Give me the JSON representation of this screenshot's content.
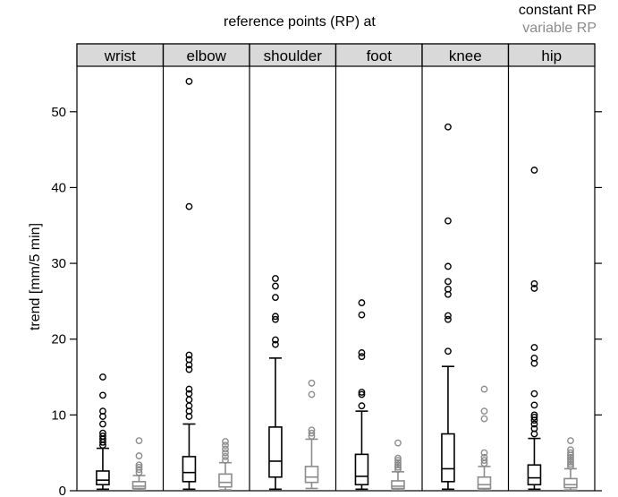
{
  "title": "reference points (RP) at",
  "legend": [
    {
      "label": "constant RP",
      "color": "#000000"
    },
    {
      "label": "variable RP",
      "color": "#8c8c8c"
    }
  ],
  "colors": {
    "constant": "#000000",
    "variable": "#8c8c8c",
    "strip": "#d9d9d9"
  },
  "chart_data": {
    "type": "box",
    "title": "reference points (RP) at",
    "ylabel": "trend [mm/5 min]",
    "xlabel": "",
    "ylim": [
      0,
      56
    ],
    "yticks": [
      0,
      10,
      20,
      30,
      40,
      50
    ],
    "panels": [
      {
        "name": "wrist",
        "constant": {
          "min": 0.2,
          "q1": 0.8,
          "median": 1.4,
          "q3": 2.6,
          "max": 5.6,
          "outliers": [
            6.0,
            6.4,
            6.8,
            7.2,
            7.6,
            8.8,
            9.8,
            10.5,
            12.6,
            15.0
          ]
        },
        "variable": {
          "min": 0.1,
          "q1": 0.3,
          "median": 0.6,
          "q3": 1.2,
          "max": 2.0,
          "outliers": [
            2.4,
            2.8,
            3.1,
            3.4,
            4.6,
            6.6
          ]
        }
      },
      {
        "name": "elbow",
        "constant": {
          "min": 0.2,
          "q1": 1.2,
          "median": 2.4,
          "q3": 4.5,
          "max": 8.8,
          "outliers": [
            9.8,
            10.5,
            11.2,
            12.0,
            12.8,
            13.4,
            16.0,
            16.6,
            17.3,
            17.9,
            37.5,
            54.0
          ]
        },
        "variable": {
          "min": 0.1,
          "q1": 0.5,
          "median": 1.1,
          "q3": 2.2,
          "max": 3.7,
          "outliers": [
            4.0,
            4.5,
            5.0,
            5.5,
            6.0,
            6.5
          ]
        }
      },
      {
        "name": "shoulder",
        "constant": {
          "min": 0.2,
          "q1": 1.8,
          "median": 3.9,
          "q3": 8.4,
          "max": 17.5,
          "outliers": [
            19.3,
            19.9,
            22.6,
            23.0,
            25.5,
            27.0,
            28.0
          ]
        },
        "variable": {
          "min": 0.3,
          "q1": 1.1,
          "median": 1.8,
          "q3": 3.2,
          "max": 6.8,
          "outliers": [
            7.2,
            7.6,
            8.0,
            12.7,
            14.2
          ]
        }
      },
      {
        "name": "foot",
        "constant": {
          "min": 0.2,
          "q1": 0.8,
          "median": 1.9,
          "q3": 4.8,
          "max": 10.5,
          "outliers": [
            11.2,
            12.7,
            13.0,
            17.7,
            18.2,
            23.2,
            24.8
          ]
        },
        "variable": {
          "min": 0.1,
          "q1": 0.3,
          "median": 0.6,
          "q3": 1.3,
          "max": 2.5,
          "outliers": [
            2.8,
            3.1,
            3.4,
            3.7,
            4.0,
            4.3,
            6.3
          ]
        }
      },
      {
        "name": "knee",
        "constant": {
          "min": 0.2,
          "q1": 1.2,
          "median": 2.9,
          "q3": 7.5,
          "max": 16.4,
          "outliers": [
            18.4,
            22.6,
            23.1,
            25.9,
            26.6,
            27.6,
            29.6,
            35.6,
            48.0
          ]
        },
        "variable": {
          "min": 0.1,
          "q1": 0.3,
          "median": 0.8,
          "q3": 1.8,
          "max": 3.2,
          "outliers": [
            3.6,
            4.0,
            4.4,
            5.0,
            9.5,
            10.5,
            13.4
          ]
        }
      },
      {
        "name": "hip",
        "constant": {
          "min": 0.2,
          "q1": 0.8,
          "median": 1.7,
          "q3": 3.4,
          "max": 6.9,
          "outliers": [
            7.5,
            8.2,
            8.8,
            9.3,
            9.7,
            10.0,
            11.3,
            12.8,
            16.8,
            17.5,
            18.9,
            26.7,
            27.3,
            42.3
          ]
        },
        "variable": {
          "min": 0.1,
          "q1": 0.4,
          "median": 0.8,
          "q3": 1.6,
          "max": 2.9,
          "outliers": [
            3.2,
            3.5,
            3.8,
            4.1,
            4.4,
            4.7,
            5.0,
            5.4,
            6.6
          ]
        }
      }
    ]
  }
}
